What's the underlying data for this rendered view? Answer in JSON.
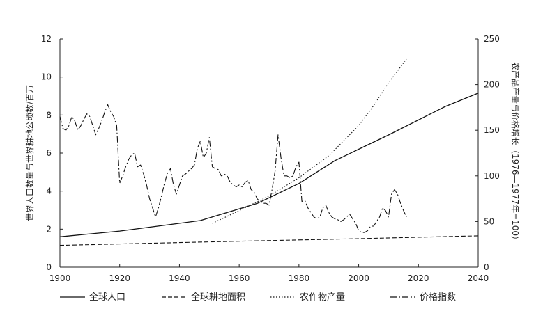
{
  "chart_data": {
    "type": "line",
    "ylabel_left": "世界人口数量与世界耕地公顷数/百万",
    "ylabel_right": "农产品产量与价格增长（1976—1977年=100）",
    "xlim": [
      1900,
      2040
    ],
    "ylim_left": [
      0,
      12
    ],
    "ylim_right": [
      0,
      250
    ],
    "x_ticks": [
      "1900",
      "1920",
      "1940",
      "1960",
      "1980",
      "2000",
      "2020",
      "2040"
    ],
    "y_ticks_left": [
      "0",
      "2",
      "4",
      "6",
      "8",
      "10",
      "12"
    ],
    "y_ticks_right": [
      "0",
      "50",
      "100",
      "150",
      "200",
      "250"
    ],
    "grid": false,
    "legend_position": "bottom",
    "series": [
      {
        "name": "全球人口",
        "axis": "left",
        "style": "solid",
        "x": [
          1900,
          1920,
          1947,
          1966,
          1980,
          1992,
          2010,
          2029,
          2040
        ],
        "y": [
          1.6,
          1.9,
          2.45,
          3.35,
          4.4,
          5.6,
          6.95,
          8.45,
          9.15
        ]
      },
      {
        "name": "全球耕地面积",
        "axis": "left",
        "style": "dashed",
        "x": [
          1900,
          1950,
          2000,
          2040
        ],
        "y": [
          1.15,
          1.33,
          1.5,
          1.65
        ]
      },
      {
        "name": "农作物产量",
        "axis": "right",
        "style": "dotted",
        "x": [
          1951,
          1960,
          1970,
          1980,
          1990,
          2000,
          2005,
          2010,
          2016
        ],
        "y": [
          48,
          62,
          78,
          98,
          122,
          155,
          177,
          202,
          228
        ]
      },
      {
        "name": "价格指数",
        "axis": "right",
        "style": "dashdot",
        "x": [
          1900,
          1901,
          1902,
          1903,
          1904,
          1905,
          1906,
          1907,
          1908,
          1909,
          1910,
          1911,
          1912,
          1913,
          1914,
          1915,
          1916,
          1917,
          1918,
          1919,
          1920,
          1921,
          1922,
          1923,
          1924,
          1925,
          1926,
          1927,
          1928,
          1929,
          1930,
          1931,
          1932,
          1933,
          1934,
          1935,
          1936,
          1937,
          1938,
          1939,
          1940,
          1941,
          1942,
          1943,
          1944,
          1945,
          1946,
          1947,
          1948,
          1949,
          1950,
          1951,
          1952,
          1953,
          1954,
          1955,
          1956,
          1957,
          1958,
          1959,
          1960,
          1961,
          1962,
          1963,
          1964,
          1965,
          1966,
          1967,
          1968,
          1969,
          1970,
          1971,
          1972,
          1973,
          1974,
          1975,
          1976,
          1977,
          1978,
          1979,
          1980,
          1981,
          1982,
          1983,
          1984,
          1985,
          1986,
          1987,
          1988,
          1989,
          1990,
          1991,
          1992,
          1993,
          1994,
          1995,
          1996,
          1997,
          1998,
          1999,
          2000,
          2001,
          2002,
          2003,
          2004,
          2005,
          2006,
          2007,
          2008,
          2009,
          2010,
          2011,
          2012,
          2013,
          2014,
          2015,
          2016
        ],
        "y": [
          165,
          152,
          150,
          155,
          165,
          160,
          150,
          155,
          162,
          168,
          165,
          155,
          145,
          152,
          160,
          170,
          178,
          170,
          165,
          155,
          92,
          100,
          110,
          118,
          123,
          125,
          110,
          112,
          102,
          90,
          75,
          65,
          55,
          65,
          78,
          92,
          103,
          108,
          90,
          80,
          90,
          100,
          102,
          105,
          108,
          112,
          130,
          138,
          120,
          125,
          142,
          110,
          108,
          107,
          100,
          102,
          100,
          93,
          90,
          88,
          90,
          88,
          93,
          95,
          85,
          82,
          75,
          72,
          70,
          70,
          68,
          85,
          105,
          145,
          120,
          100,
          100,
          98,
          100,
          110,
          115,
          72,
          73,
          65,
          60,
          55,
          53,
          55,
          65,
          68,
          60,
          55,
          53,
          52,
          50,
          52,
          55,
          58,
          53,
          48,
          40,
          38,
          38,
          40,
          45,
          45,
          50,
          55,
          65,
          62,
          55,
          80,
          85,
          80,
          70,
          62,
          55
        ]
      }
    ]
  }
}
